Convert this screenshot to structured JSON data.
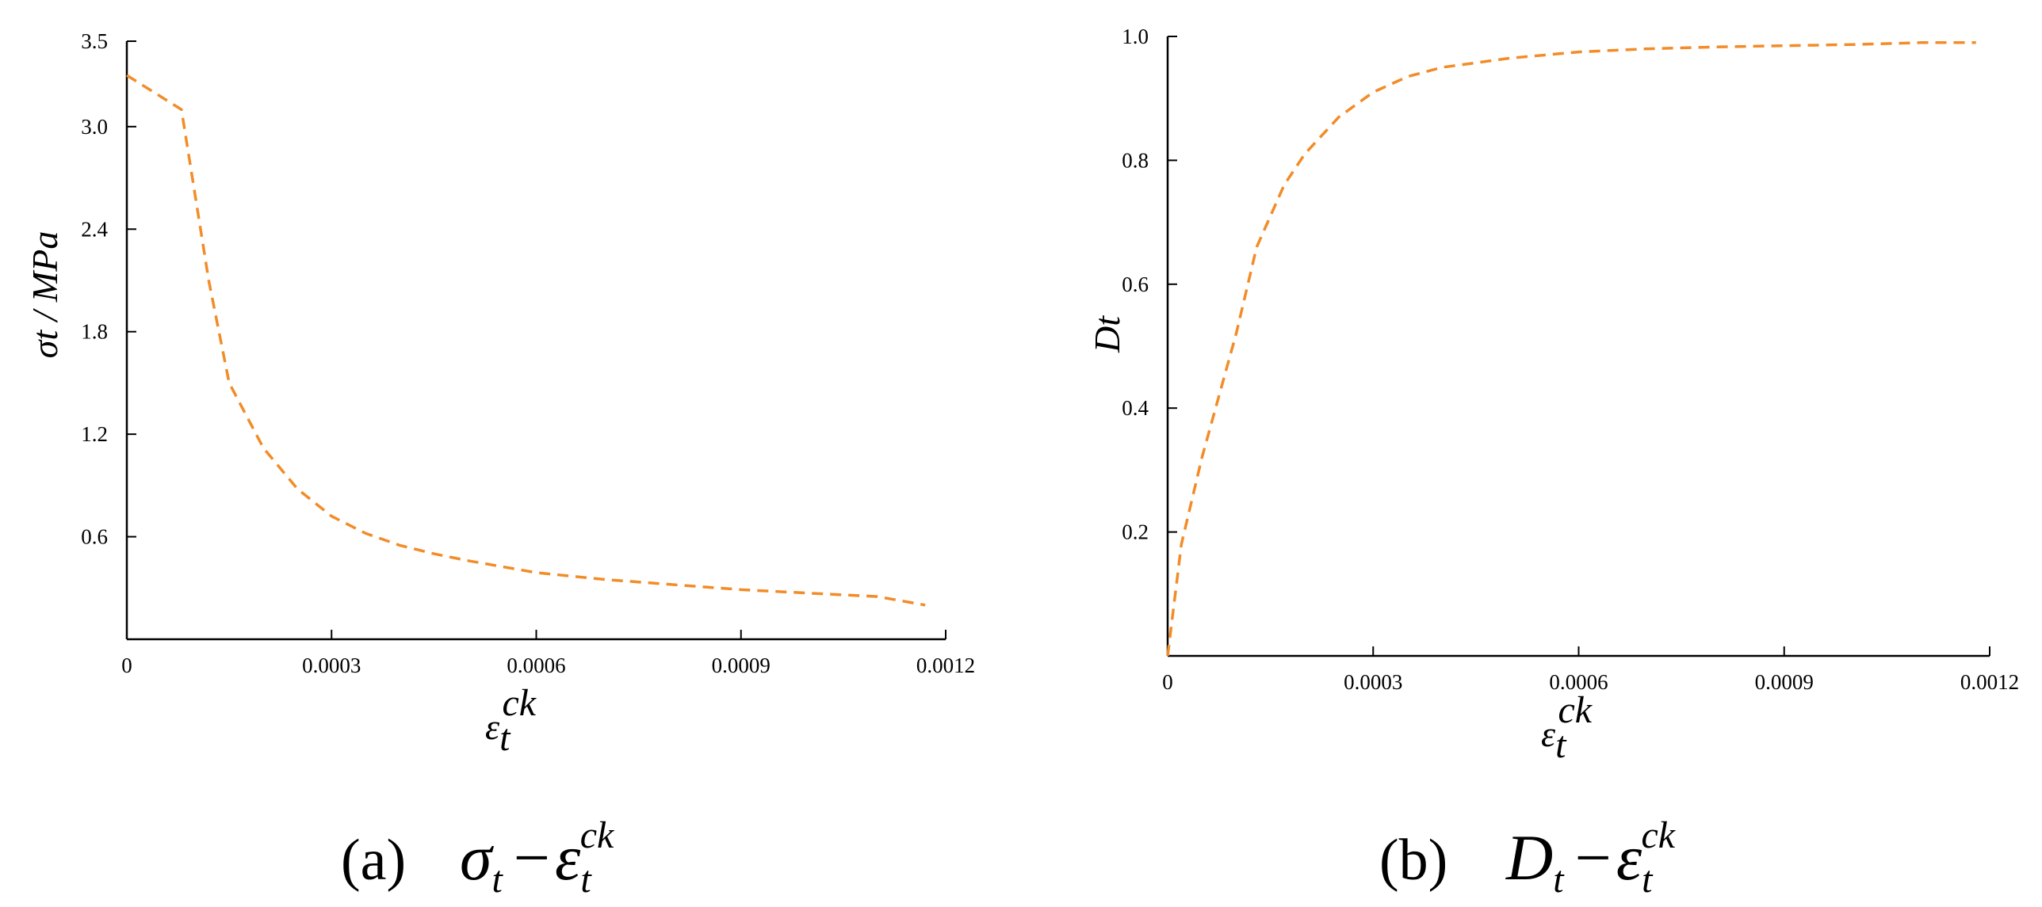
{
  "chart_data": [
    {
      "type": "line",
      "ylabel": "σt / MPa",
      "xlabel_symbol": "ε",
      "xlabel_sub": "t",
      "xlabel_sup": "ck",
      "x_ticks": [
        "0",
        "0.0003",
        "0.0006",
        "0.0009",
        "0.0012"
      ],
      "y_ticks": [
        "0.6",
        "1.2",
        "1.8",
        "2.4",
        "3.0",
        "3.5"
      ],
      "xlim": [
        0,
        0.0012
      ],
      "ylim": [
        0,
        3.5
      ],
      "line_color": "#f28c28",
      "line_style": "dashed",
      "series": [
        {
          "x": [
            0,
            8e-05,
            0.0001,
            0.00012,
            0.00015,
            0.0002,
            0.00025,
            0.0003,
            0.00035,
            0.0004,
            0.00045,
            0.0005,
            0.0006,
            0.0007,
            0.0008,
            0.0009,
            0.001,
            0.0011,
            0.00117
          ],
          "y": [
            3.3,
            3.1,
            2.6,
            2.1,
            1.5,
            1.12,
            0.88,
            0.72,
            0.62,
            0.55,
            0.5,
            0.46,
            0.39,
            0.35,
            0.32,
            0.29,
            0.27,
            0.25,
            0.2
          ]
        }
      ],
      "caption_label": "(a)",
      "caption_lhs": "σ",
      "caption_lhs_sub": "t",
      "caption_rhs": "ε",
      "caption_rhs_sub": "t",
      "caption_rhs_sup": "ck"
    },
    {
      "type": "line",
      "ylabel": "Dt",
      "xlabel_symbol": "ε",
      "xlabel_sub": "t",
      "xlabel_sup": "ck",
      "x_ticks": [
        "0",
        "0.0003",
        "0.0006",
        "0.0009",
        "0.0012"
      ],
      "y_ticks": [
        "0.2",
        "0.4",
        "0.6",
        "0.8",
        "1.0"
      ],
      "xlim": [
        0,
        0.0012
      ],
      "ylim": [
        0,
        1.0
      ],
      "line_color": "#f28c28",
      "line_style": "dashed",
      "series": [
        {
          "x": [
            0,
            2e-05,
            5e-05,
            0.0001,
            0.00013,
            0.00017,
            0.0002,
            0.00025,
            0.0003,
            0.00035,
            0.0004,
            0.0005,
            0.0006,
            0.0007,
            0.0008,
            0.0009,
            0.001,
            0.0011,
            0.00118
          ],
          "y": [
            0,
            0.18,
            0.32,
            0.52,
            0.66,
            0.76,
            0.81,
            0.87,
            0.91,
            0.935,
            0.95,
            0.965,
            0.975,
            0.98,
            0.983,
            0.985,
            0.987,
            0.99,
            0.99
          ]
        }
      ],
      "caption_label": "(b)",
      "caption_lhs": "D",
      "caption_lhs_sub": "t",
      "caption_rhs": "ε",
      "caption_rhs_sub": "t",
      "caption_rhs_sup": "ck"
    }
  ]
}
